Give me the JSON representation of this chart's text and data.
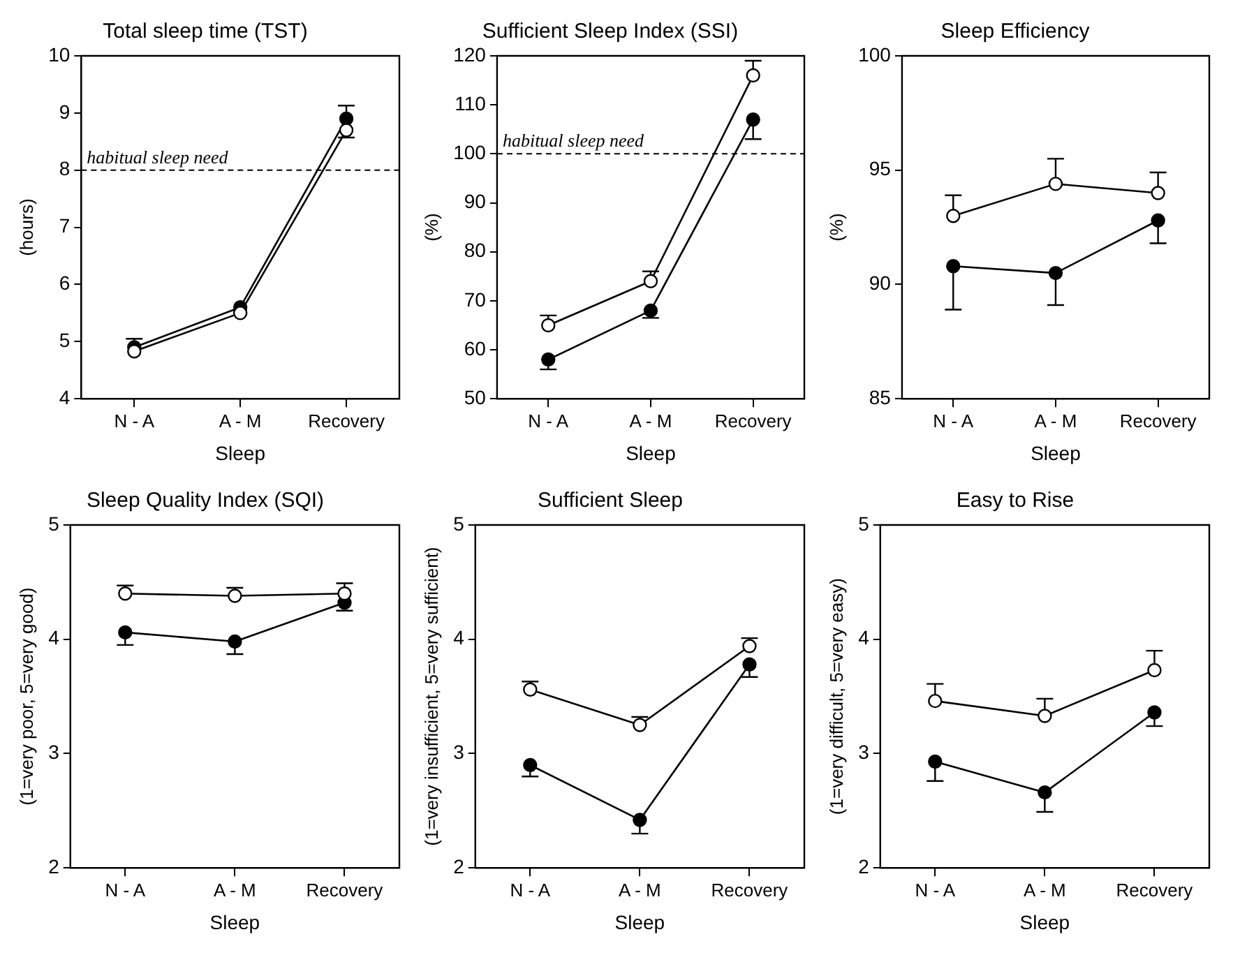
{
  "chart_data": [
    {
      "type": "line",
      "title": "Total sleep time (TST)",
      "xlabel": "Sleep",
      "ylabel": "(hours)",
      "categories": [
        "N - A",
        "A - M",
        "Recovery"
      ],
      "marker": "circle",
      "grid": false,
      "legend": false,
      "ylim": [
        4,
        10
      ],
      "yticks": [
        4,
        5,
        6,
        7,
        8,
        9,
        10
      ],
      "series": [
        {
          "color": "#000000",
          "values": [
            4.9,
            5.6,
            8.9
          ],
          "errors": [
            [
              4.9,
              5.05
            ],
            null,
            [
              8.9,
              9.13
            ]
          ]
        },
        {
          "color": "#ffffff",
          "values": [
            4.83,
            5.5,
            8.7
          ],
          "errors": [
            null,
            null,
            [
              8.57,
              8.7
            ]
          ]
        }
      ],
      "ref_lines": [
        {
          "axis": "y",
          "value": 8,
          "label": "habitual sleep need",
          "line_style": "dashed"
        }
      ]
    },
    {
      "type": "line",
      "title": "Sufficient Sleep Index (SSI)",
      "xlabel": "Sleep",
      "ylabel": "(%)",
      "categories": [
        "N - A",
        "A - M",
        "Recovery"
      ],
      "marker": "circle",
      "grid": false,
      "legend": false,
      "ylim": [
        50,
        120
      ],
      "yticks": [
        50,
        60,
        70,
        80,
        90,
        100,
        110,
        120
      ],
      "series": [
        {
          "color": "#000000",
          "values": [
            58,
            68,
            107
          ],
          "errors": [
            [
              56,
              58
            ],
            [
              66.5,
              68
            ],
            [
              103,
              107
            ]
          ]
        },
        {
          "color": "#ffffff",
          "values": [
            65,
            74,
            116
          ],
          "errors": [
            [
              65,
              67
            ],
            [
              74,
              76
            ],
            [
              116,
              119
            ]
          ]
        }
      ],
      "ref_lines": [
        {
          "axis": "y",
          "value": 100,
          "label": "habitual sleep need",
          "line_style": "dashed"
        }
      ]
    },
    {
      "type": "line",
      "title": "Sleep Efficiency",
      "xlabel": "Sleep",
      "ylabel": "(%)",
      "categories": [
        "N - A",
        "A - M",
        "Recovery"
      ],
      "marker": "circle",
      "grid": false,
      "legend": false,
      "ylim": [
        85,
        100
      ],
      "yticks": [
        85,
        90,
        95,
        100
      ],
      "series": [
        {
          "color": "#000000",
          "values": [
            90.8,
            90.5,
            92.8
          ],
          "errors": [
            [
              88.9,
              90.8
            ],
            [
              89.1,
              90.5
            ],
            [
              91.8,
              92.8
            ]
          ]
        },
        {
          "color": "#ffffff",
          "values": [
            93.0,
            94.4,
            94.0
          ],
          "errors": [
            [
              93.0,
              93.9
            ],
            [
              94.4,
              95.5
            ],
            [
              94.0,
              94.9
            ]
          ]
        }
      ]
    },
    {
      "type": "line",
      "title": "Sleep Quality Index (SQI)",
      "xlabel": "Sleep",
      "ylabel": "(1=very poor, 5=very good)",
      "categories": [
        "N - A",
        "A - M",
        "Recovery"
      ],
      "marker": "circle",
      "grid": false,
      "legend": false,
      "ylim": [
        2,
        5
      ],
      "yticks": [
        2,
        3,
        4,
        5
      ],
      "series": [
        {
          "color": "#000000",
          "values": [
            4.06,
            3.98,
            4.32
          ],
          "errors": [
            [
              3.95,
              4.06
            ],
            [
              3.87,
              3.98
            ],
            [
              4.25,
              4.32
            ]
          ]
        },
        {
          "color": "#ffffff",
          "values": [
            4.4,
            4.38,
            4.4
          ],
          "errors": [
            [
              4.4,
              4.47
            ],
            [
              4.38,
              4.45
            ],
            [
              4.4,
              4.49
            ]
          ]
        }
      ]
    },
    {
      "type": "line",
      "title": "Sufficient Sleep",
      "xlabel": "Sleep",
      "ylabel": "(1=very insufficient, 5=very sufficient)",
      "categories": [
        "N - A",
        "A - M",
        "Recovery"
      ],
      "marker": "circle",
      "grid": false,
      "legend": false,
      "ylim": [
        2,
        5
      ],
      "yticks": [
        2,
        3,
        4,
        5
      ],
      "series": [
        {
          "color": "#000000",
          "values": [
            2.9,
            2.42,
            3.78
          ],
          "errors": [
            [
              2.8,
              2.9
            ],
            [
              2.3,
              2.42
            ],
            [
              3.67,
              3.78
            ]
          ]
        },
        {
          "color": "#ffffff",
          "values": [
            3.56,
            3.25,
            3.94
          ],
          "errors": [
            [
              3.56,
              3.63
            ],
            [
              3.25,
              3.32
            ],
            [
              3.94,
              4.01
            ]
          ]
        }
      ]
    },
    {
      "type": "line",
      "title": "Easy to Rise",
      "xlabel": "Sleep",
      "ylabel": "(1=very difficult, 5=very easy)",
      "categories": [
        "N - A",
        "A - M",
        "Recovery"
      ],
      "marker": "circle",
      "grid": false,
      "legend": false,
      "ylim": [
        2,
        5
      ],
      "yticks": [
        2,
        3,
        4,
        5
      ],
      "series": [
        {
          "color": "#000000",
          "values": [
            2.93,
            2.66,
            3.36
          ],
          "errors": [
            [
              2.76,
              2.93
            ],
            [
              2.49,
              2.66
            ],
            [
              3.24,
              3.36
            ]
          ]
        },
        {
          "color": "#ffffff",
          "values": [
            3.46,
            3.33,
            3.73
          ],
          "errors": [
            [
              3.46,
              3.61
            ],
            [
              3.33,
              3.48
            ],
            [
              3.73,
              3.9
            ]
          ]
        }
      ]
    }
  ]
}
